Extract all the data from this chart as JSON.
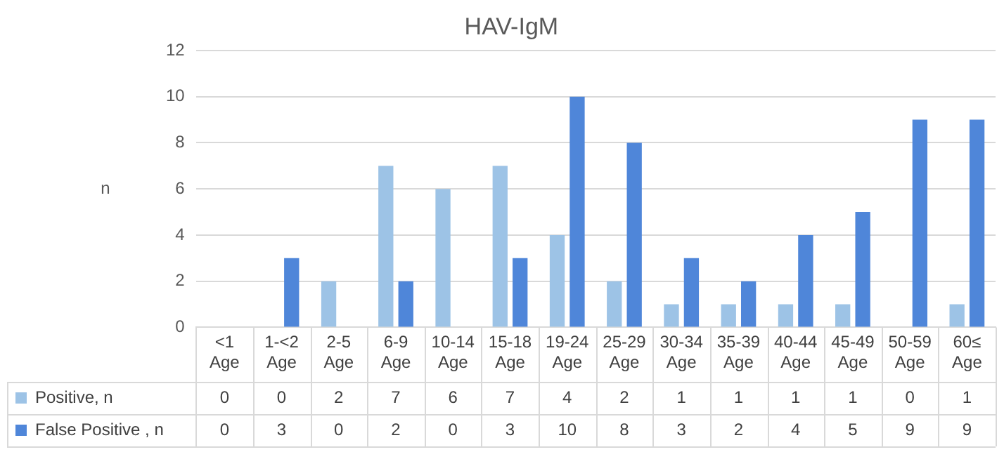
{
  "chart_data": {
    "type": "bar",
    "title": "HAV-IgM",
    "ylabel": "n",
    "categories": [
      "<1 Age",
      "1-<2 Age",
      "2-5 Age",
      "6-9 Age",
      "10-14 Age",
      "15-18 Age",
      "19-24 Age",
      "25-29 Age",
      "30-34 Age",
      "35-39 Age",
      "40-44 Age",
      "45-49 Age",
      "50-59 Age",
      "60≤ Age"
    ],
    "series": [
      {
        "name": "Positive, n",
        "color": "#9dc3e6",
        "values": [
          0,
          0,
          2,
          7,
          6,
          7,
          4,
          2,
          1,
          1,
          1,
          1,
          0,
          1
        ]
      },
      {
        "name": "False Positive , n",
        "color": "#4f86d9",
        "values": [
          0,
          3,
          0,
          2,
          0,
          3,
          10,
          8,
          3,
          2,
          4,
          5,
          9,
          9
        ]
      }
    ],
    "ylim": [
      0,
      12
    ],
    "yticks": [
      0,
      2,
      4,
      6,
      8,
      10,
      12
    ],
    "grid": "y",
    "legend": "bottom",
    "data_labels": true
  }
}
